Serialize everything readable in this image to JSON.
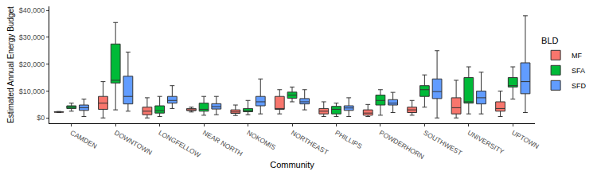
{
  "chart_data": {
    "type": "box",
    "x_label": "Community",
    "y_label": "Estimated Annual Energy Budget",
    "legend_title": "BLD",
    "legend": "right",
    "grid": false,
    "categories": [
      "CAMDEN",
      "DOWNTOWN",
      "LONGFELLOW",
      "NEAR NORTH",
      "NOKOMIS",
      "NORTHEAST",
      "PHILLIPS",
      "POWDERHORN",
      "SOUTHWEST",
      "UNIVERSITY",
      "UPTOWN"
    ],
    "ylim": [
      -2000,
      41500
    ],
    "yticks": [
      {
        "value": 0,
        "label": "$0"
      },
      {
        "value": 10000,
        "label": "$10,000"
      },
      {
        "value": 20000,
        "label": "$20,000"
      },
      {
        "value": 30000,
        "label": "$30,000"
      },
      {
        "value": 40000,
        "label": "$40,000"
      }
    ],
    "series": [
      {
        "name": "MF",
        "color": "#f8766d",
        "min": [
          2000,
          0,
          0,
          2200,
          900,
          1500,
          500,
          500,
          1000,
          0,
          500
        ],
        "q1": [
          2100,
          3200,
          1200,
          2700,
          1700,
          3200,
          1500,
          1000,
          2000,
          1500,
          2500
        ],
        "median": [
          2200,
          5500,
          2500,
          3000,
          2200,
          3500,
          2500,
          1800,
          3000,
          3800,
          3500
        ],
        "q3": [
          2300,
          8000,
          4000,
          3500,
          3000,
          8000,
          3500,
          3000,
          4000,
          7500,
          6000
        ],
        "max": [
          2400,
          13500,
          7500,
          4000,
          4800,
          10500,
          6000,
          5000,
          6500,
          14000,
          10000
        ]
      },
      {
        "name": "SFA",
        "color": "#00ba38",
        "min": [
          2500,
          3000,
          500,
          1000,
          1200,
          6000,
          500,
          1000,
          4000,
          1500,
          7000
        ],
        "q1": [
          3500,
          13000,
          1800,
          2500,
          2300,
          7300,
          1500,
          4800,
          8000,
          5500,
          11500
        ],
        "median": [
          4000,
          14000,
          2700,
          3200,
          2700,
          8500,
          3200,
          6500,
          10500,
          6000,
          12000
        ],
        "q3": [
          4500,
          27500,
          4500,
          5500,
          3500,
          9600,
          4300,
          8500,
          12000,
          15000,
          15000
        ],
        "max": [
          5500,
          35500,
          8000,
          8000,
          6500,
          11500,
          5500,
          10500,
          16000,
          19000,
          19000
        ]
      },
      {
        "name": "SFD",
        "color": "#619cff",
        "min": [
          500,
          2500,
          3500,
          1200,
          1500,
          3000,
          500,
          2000,
          0,
          1500,
          2000
        ],
        "q1": [
          2800,
          5200,
          5500,
          3300,
          4500,
          5200,
          2800,
          4800,
          7200,
          5200,
          9000
        ],
        "median": [
          3800,
          8000,
          6500,
          4200,
          6000,
          6000,
          3700,
          5500,
          9800,
          7500,
          13500
        ],
        "q3": [
          4800,
          15500,
          8000,
          5300,
          8000,
          7200,
          4500,
          6800,
          14500,
          10000,
          20500
        ],
        "max": [
          7000,
          24500,
          12000,
          8000,
          14500,
          10500,
          7500,
          9500,
          25000,
          17000,
          38000
        ]
      }
    ]
  }
}
